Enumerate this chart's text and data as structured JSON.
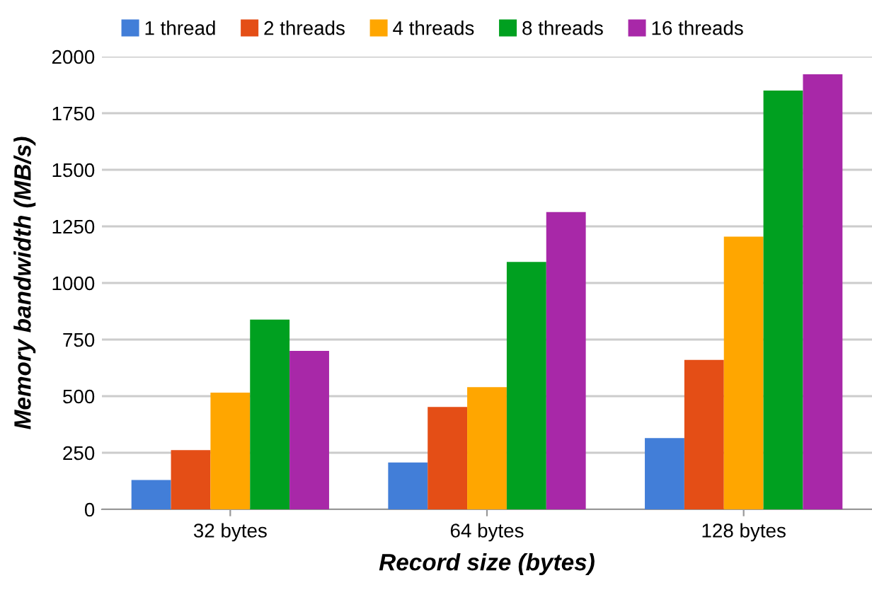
{
  "chart_data": {
    "type": "bar",
    "xlabel": "Record size (bytes)",
    "ylabel": "Memory bandwidth (MB/s)",
    "categories": [
      "32 bytes",
      "64 bytes",
      "128 bytes"
    ],
    "series": [
      {
        "name": "1 thread",
        "color": "#427ed8",
        "values": [
          130,
          207,
          315
        ]
      },
      {
        "name": "2 threads",
        "color": "#e44e16",
        "values": [
          262,
          452,
          660
        ]
      },
      {
        "name": "4 threads",
        "color": "#ffa600",
        "values": [
          516,
          540,
          1205
        ]
      },
      {
        "name": "8 threads",
        "color": "#00a020",
        "values": [
          838,
          1093,
          1850
        ]
      },
      {
        "name": "16 threads",
        "color": "#a828a8",
        "values": [
          700,
          1313,
          1922
        ]
      }
    ],
    "ylim": [
      0,
      2000
    ],
    "yticks": [
      0,
      250,
      500,
      750,
      1000,
      1250,
      1500,
      1750,
      2000
    ],
    "grid": "y",
    "legend": "top"
  }
}
